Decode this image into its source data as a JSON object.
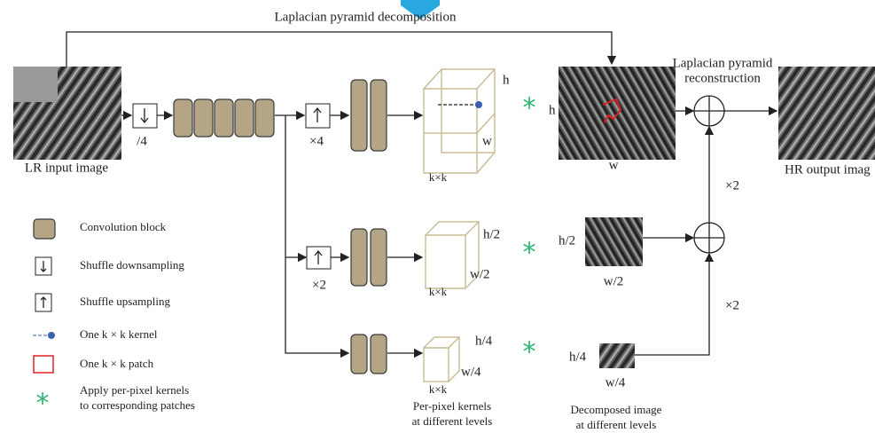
{
  "top_label": "Laplacian pyramid decomposition",
  "input_label": "LR input image",
  "output_label": "HR output imag",
  "reconstruction_label": [
    "Laplacian pyramid",
    "reconstruction"
  ],
  "upscale_labels": [
    "×2",
    "×2"
  ],
  "top_row": {
    "downsample_factor": "/4",
    "upsample_factor": "×4",
    "kernel_h": "h",
    "kernel_w": "w",
    "kernel_size": "k×k",
    "operator": "*",
    "image_h": "h",
    "image_w": "w"
  },
  "middle_row": {
    "upsample_factor": "×2",
    "kernel_h": "h/2",
    "kernel_w": "w/2",
    "kernel_size": "k×k",
    "operator": "*",
    "image_h": "h/2",
    "image_w": "w/2"
  },
  "bottom_row": {
    "kernel_h": "h/4",
    "kernel_w": "w/4",
    "kernel_size": "k×k",
    "operator": "*",
    "image_h": "h/4",
    "image_w": "w/4"
  },
  "kernels_caption": [
    "Per-pixel kernels",
    "at different levels"
  ],
  "image_caption": [
    "Decomposed image",
    "at different levels"
  ],
  "legend": [
    "Convolution block",
    "Shuffle downsampling",
    "Shuffle upsampling",
    "One k × k kernel",
    "One k × k patch",
    "Apply per-pixel kernels",
    "to corresponding patches"
  ]
}
